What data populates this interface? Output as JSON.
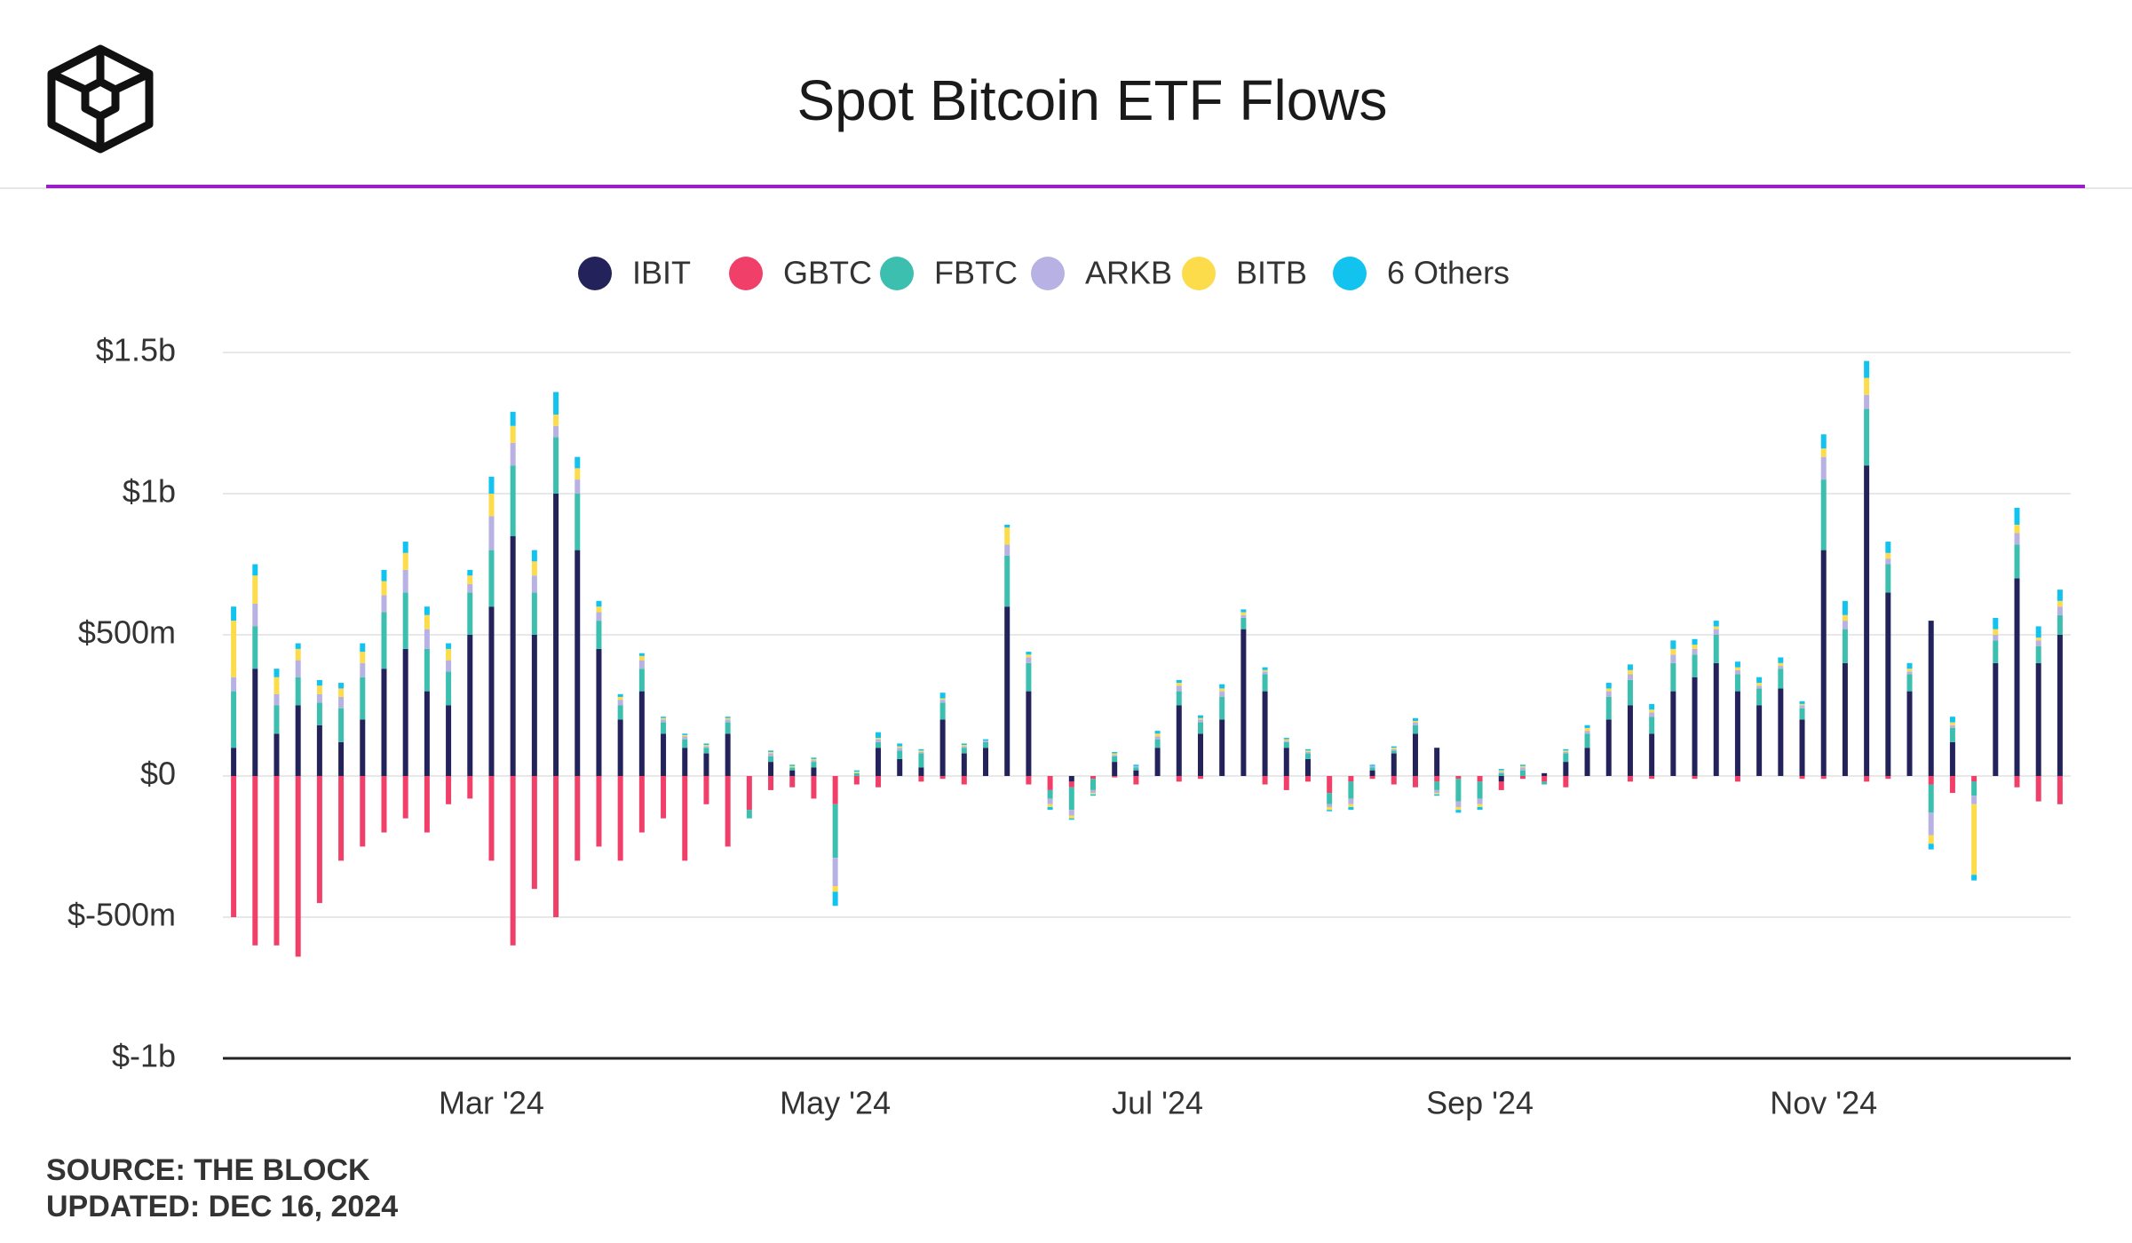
{
  "chart_data": {
    "type": "stacked-bar",
    "title": "Spot Bitcoin ETF Flows",
    "source": "SOURCE: THE BLOCK",
    "updated": "UPDATED: DEC 16, 2024",
    "ylim": [
      -1000,
      1500
    ],
    "yticks": [
      {
        "value": -1000,
        "label": "$-1b"
      },
      {
        "value": -500,
        "label": "$-500m"
      },
      {
        "value": 0,
        "label": "$0"
      },
      {
        "value": 500,
        "label": "$500m"
      },
      {
        "value": 1000,
        "label": "$1b"
      },
      {
        "value": 1500,
        "label": "$1.5b"
      }
    ],
    "grid": true,
    "legend": "top",
    "categories": [
      null,
      null,
      null,
      null,
      null,
      null,
      null,
      null,
      null,
      null,
      null,
      null,
      "Mar '24",
      null,
      null,
      null,
      null,
      null,
      null,
      null,
      null,
      null,
      null,
      null,
      null,
      null,
      null,
      null,
      "May '24",
      null,
      null,
      null,
      null,
      null,
      null,
      null,
      null,
      null,
      null,
      null,
      null,
      null,
      null,
      "Jul '24",
      null,
      null,
      null,
      null,
      null,
      null,
      null,
      null,
      null,
      null,
      null,
      null,
      null,
      null,
      "Sep '24",
      null,
      null,
      null,
      null,
      null,
      null,
      null,
      null,
      null,
      null,
      null,
      null,
      null,
      null,
      null,
      "Nov '24",
      null,
      null,
      null,
      null,
      null,
      null,
      null,
      null,
      null,
      null,
      null
    ],
    "series": [
      {
        "name": "IBIT",
        "color": "#24225a",
        "values": [
          100,
          380,
          150,
          250,
          180,
          120,
          200,
          380,
          450,
          300,
          250,
          500,
          600,
          850,
          500,
          1000,
          800,
          450,
          200,
          300,
          150,
          100,
          80,
          150,
          0,
          50,
          20,
          30,
          0,
          0,
          100,
          60,
          30,
          200,
          80,
          100,
          600,
          300,
          0,
          -20,
          0,
          50,
          20,
          100,
          250,
          150,
          200,
          520,
          300,
          100,
          60,
          0,
          0,
          20,
          80,
          150,
          100,
          0,
          0,
          -20,
          0,
          10,
          50,
          100,
          200,
          250,
          150,
          300,
          350,
          400,
          300,
          250,
          310,
          200,
          800,
          400,
          1100,
          650,
          300,
          550,
          120,
          0,
          400,
          700,
          400,
          500
        ]
      },
      {
        "name": "GBTC",
        "color": "#f0406a",
        "values": [
          -500,
          -600,
          -600,
          -640,
          -450,
          -300,
          -250,
          -200,
          -150,
          -200,
          -100,
          -80,
          -300,
          -600,
          -400,
          -500,
          -300,
          -250,
          -300,
          -200,
          -150,
          -300,
          -100,
          -250,
          -120,
          -50,
          -40,
          -80,
          -100,
          -30,
          -40,
          0,
          -20,
          -10,
          -30,
          0,
          0,
          -30,
          -50,
          -20,
          -10,
          -5,
          -30,
          0,
          -20,
          -10,
          0,
          0,
          -30,
          -50,
          -20,
          -60,
          -20,
          -10,
          -30,
          -40,
          -20,
          -10,
          -20,
          -30,
          -10,
          -20,
          -40,
          0,
          0,
          -20,
          -10,
          0,
          -10,
          0,
          -20,
          0,
          0,
          -10,
          -10,
          0,
          -20,
          -10,
          0,
          -30,
          -60,
          -20,
          0,
          -40,
          -90,
          -100
        ]
      },
      {
        "name": "FBTC",
        "color": "#3dbfb0",
        "values": [
          200,
          150,
          100,
          100,
          80,
          120,
          150,
          200,
          200,
          150,
          120,
          150,
          200,
          250,
          150,
          200,
          200,
          100,
          50,
          80,
          40,
          30,
          20,
          40,
          -30,
          20,
          10,
          20,
          -190,
          10,
          20,
          30,
          50,
          60,
          20,
          20,
          180,
          100,
          -30,
          -80,
          -40,
          20,
          10,
          30,
          50,
          40,
          80,
          40,
          60,
          20,
          20,
          -40,
          -60,
          10,
          10,
          30,
          -30,
          -80,
          -60,
          10,
          20,
          -10,
          30,
          50,
          80,
          90,
          60,
          100,
          80,
          100,
          60,
          60,
          70,
          40,
          250,
          120,
          200,
          100,
          60,
          -100,
          50,
          -50,
          80,
          120,
          60,
          70
        ]
      },
      {
        "name": "ARKB",
        "color": "#b7b2e3",
        "values": [
          50,
          80,
          40,
          60,
          30,
          40,
          50,
          60,
          80,
          70,
          40,
          30,
          120,
          80,
          60,
          40,
          50,
          30,
          20,
          30,
          10,
          10,
          5,
          10,
          0,
          10,
          0,
          5,
          -100,
          0,
          10,
          10,
          5,
          10,
          5,
          5,
          40,
          20,
          -20,
          -20,
          -10,
          5,
          5,
          10,
          20,
          10,
          20,
          10,
          10,
          5,
          5,
          -10,
          -20,
          5,
          5,
          10,
          -10,
          -20,
          -20,
          5,
          10,
          0,
          5,
          10,
          20,
          20,
          15,
          30,
          20,
          20,
          15,
          10,
          10,
          10,
          80,
          30,
          50,
          20,
          10,
          -80,
          10,
          -30,
          20,
          40,
          20,
          30
        ]
      },
      {
        "name": "BITB",
        "color": "#fcdc4b",
        "values": [
          200,
          100,
          60,
          40,
          30,
          30,
          40,
          50,
          60,
          50,
          40,
          30,
          80,
          60,
          50,
          40,
          40,
          20,
          10,
          15,
          5,
          5,
          5,
          5,
          0,
          5,
          5,
          5,
          -20,
          5,
          5,
          5,
          5,
          5,
          5,
          0,
          60,
          10,
          -10,
          -10,
          -5,
          5,
          0,
          10,
          10,
          5,
          10,
          10,
          5,
          5,
          5,
          -10,
          -10,
          0,
          5,
          5,
          -5,
          -10,
          -10,
          5,
          5,
          0,
          5,
          10,
          10,
          15,
          10,
          20,
          15,
          10,
          10,
          10,
          10,
          5,
          30,
          20,
          60,
          20,
          10,
          -30,
          10,
          -250,
          20,
          30,
          10,
          20
        ]
      },
      {
        "name": "6 Others",
        "color": "#12c3f0",
        "values": [
          50,
          40,
          30,
          20,
          20,
          20,
          30,
          40,
          40,
          30,
          20,
          20,
          60,
          50,
          40,
          80,
          40,
          20,
          10,
          10,
          5,
          5,
          5,
          5,
          0,
          5,
          5,
          5,
          -50,
          5,
          20,
          10,
          5,
          20,
          5,
          5,
          10,
          10,
          -10,
          -5,
          -5,
          5,
          5,
          10,
          10,
          10,
          15,
          10,
          10,
          5,
          5,
          -5,
          -10,
          5,
          5,
          10,
          -5,
          -10,
          -10,
          5,
          5,
          0,
          5,
          10,
          20,
          20,
          20,
          30,
          20,
          20,
          20,
          20,
          20,
          10,
          50,
          50,
          60,
          40,
          20,
          -20,
          20,
          -20,
          40,
          60,
          40,
          40
        ]
      }
    ]
  }
}
